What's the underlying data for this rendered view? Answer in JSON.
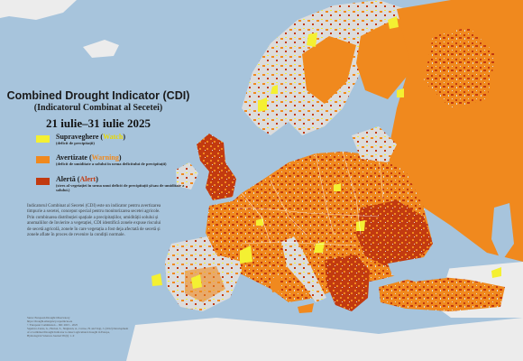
{
  "title": "Combined Drought Indicator (CDI)",
  "subtitle": "(Indicatorul Combinat al Secetei)",
  "date_range": "21 iulie–31 iulie 2025",
  "colors": {
    "sea": "#a7c4dc",
    "land_neutral": "#dcdcdc",
    "land_outside": "#ececec",
    "watch": "#f4f032",
    "warning": "#f0891e",
    "alert": "#c23a10",
    "label_dark": "#1a1a1a"
  },
  "legend": [
    {
      "key": "watch",
      "label": "Supraveghere (",
      "tag": "Watch",
      "tag_close": ")",
      "tag_color": "#e8d800",
      "description": "(deficit de precipitații)"
    },
    {
      "key": "warning",
      "label": "Avertizate (",
      "tag": "Warning",
      "tag_close": ")",
      "tag_color": "#f0891e",
      "description": "(deficit de umiditate a solului în urma deficitului de precipitații)"
    },
    {
      "key": "alert",
      "label": "Alertă (",
      "tag": "Alert",
      "tag_close": ")",
      "tag_color": "#c23a10",
      "description": "(stres al vegetației în urma unui deficit de precipitații și/sau de umiditate a solului.)"
    }
  ],
  "description": "Indicatorul Combinat al Secetei (CDI) este un indicator pentru avertizarea timpurie a secetei, conceput special pentru monitorizarea secetei agricole. Prin combinarea distribuției spațiale a precipitațiilor, umidității solului și anomaliilor de învierire a vegetației, CDI identifică zonele expuse riscului de secetă agricolă, zonele în care vegetația a fost deja afectată de secetă și zonele aflate în proces de revenire la condiții normale.",
  "sources": [
    "Sursa: European Drought Observatory",
    "https://drought.emergency.copernicus.eu",
    "© European Commission – JRC 2023 – 2025",
    "Sepulcre-Canto, G., Horion, S., Singleton, A., Carrao, H. and Vogt, J. (2012) Development",
    "of a Combined Drought Indicator to detect agricultural drought in Europe,",
    "Hydrological Sciences Journal 58 (6): 1–9"
  ]
}
